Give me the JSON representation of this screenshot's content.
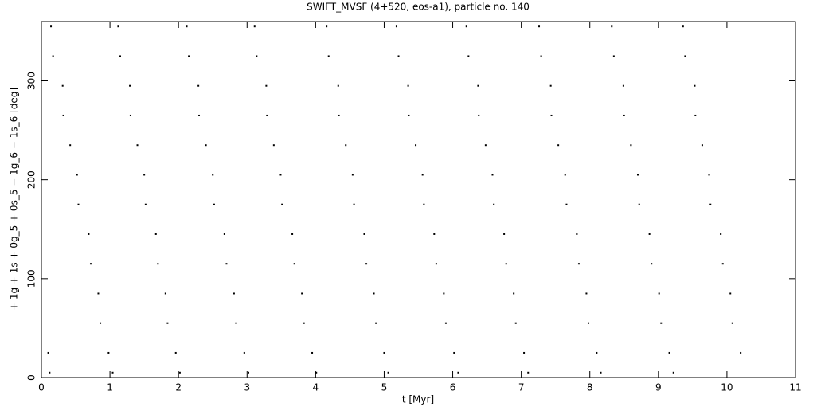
{
  "chart_data": {
    "type": "scatter",
    "title": "SWIFT_MVSF (4+520, eos-a1), particle no. 140",
    "x_label": "t [Myr]",
    "y_label": "+ 1g + 1s + 0g_5 + 0s_5 − 1g_6 − 1s_6 [deg]",
    "xlim": [
      0,
      11
    ],
    "ylim": [
      0,
      360
    ],
    "xticks": [
      0,
      1,
      2,
      3,
      4,
      5,
      6,
      7,
      8,
      9,
      10,
      11
    ],
    "yticks": [
      0,
      100,
      200,
      300
    ],
    "series": [
      {
        "color": "#000000",
        "x": [
          0.1,
          0.12,
          0.14,
          0.17,
          0.31,
          0.32,
          0.42,
          0.52,
          0.54,
          0.69,
          0.72,
          0.83,
          0.86,
          0.98,
          1.04,
          1.12,
          1.15,
          1.29,
          1.3,
          1.4,
          1.5,
          1.52,
          1.67,
          1.7,
          1.81,
          1.84,
          1.96,
          2.02,
          2.12,
          2.15,
          2.29,
          2.3,
          2.4,
          2.5,
          2.52,
          2.67,
          2.7,
          2.81,
          2.84,
          2.96,
          3.02,
          3.11,
          3.14,
          3.28,
          3.29,
          3.39,
          3.49,
          3.51,
          3.66,
          3.69,
          3.8,
          3.83,
          3.95,
          4.01,
          4.16,
          4.19,
          4.33,
          4.34,
          4.44,
          4.54,
          4.56,
          4.71,
          4.74,
          4.85,
          4.88,
          5.0,
          5.06,
          5.18,
          5.21,
          5.35,
          5.36,
          5.46,
          5.56,
          5.58,
          5.73,
          5.76,
          5.87,
          5.9,
          6.02,
          6.08,
          6.2,
          6.23,
          6.37,
          6.38,
          6.48,
          6.58,
          6.6,
          6.75,
          6.78,
          6.89,
          6.92,
          7.04,
          7.1,
          7.26,
          7.29,
          7.43,
          7.44,
          7.54,
          7.64,
          7.66,
          7.81,
          7.84,
          7.95,
          7.98,
          8.1,
          8.16,
          8.32,
          8.35,
          8.49,
          8.5,
          8.6,
          8.7,
          8.72,
          8.87,
          8.9,
          9.01,
          9.04,
          9.16,
          9.22,
          9.36,
          9.39,
          9.53,
          9.54,
          9.64,
          9.74,
          9.76,
          9.91,
          9.94,
          10.05,
          10.08,
          10.2
        ],
        "values": [
          25,
          5,
          355,
          325,
          295,
          265,
          235,
          205,
          175,
          145,
          115,
          85,
          55,
          25,
          5,
          355,
          325,
          295,
          265,
          235,
          205,
          175,
          145,
          115,
          85,
          55,
          25,
          5,
          355,
          325,
          295,
          265,
          235,
          205,
          175,
          145,
          115,
          85,
          55,
          25,
          5,
          355,
          325,
          295,
          265,
          235,
          205,
          175,
          145,
          115,
          85,
          55,
          25,
          5,
          355,
          325,
          295,
          265,
          235,
          205,
          175,
          145,
          115,
          85,
          55,
          25,
          5,
          355,
          325,
          295,
          265,
          235,
          205,
          175,
          145,
          115,
          85,
          55,
          25,
          5,
          355,
          325,
          295,
          265,
          235,
          205,
          175,
          145,
          115,
          85,
          55,
          25,
          5,
          355,
          325,
          295,
          265,
          235,
          205,
          175,
          145,
          115,
          85,
          55,
          25,
          5,
          355,
          325,
          295,
          265,
          235,
          205,
          175,
          145,
          115,
          85,
          55,
          25,
          5,
          355,
          325,
          295,
          265,
          235,
          205,
          175,
          145,
          115,
          85,
          55,
          25
        ]
      }
    ]
  }
}
